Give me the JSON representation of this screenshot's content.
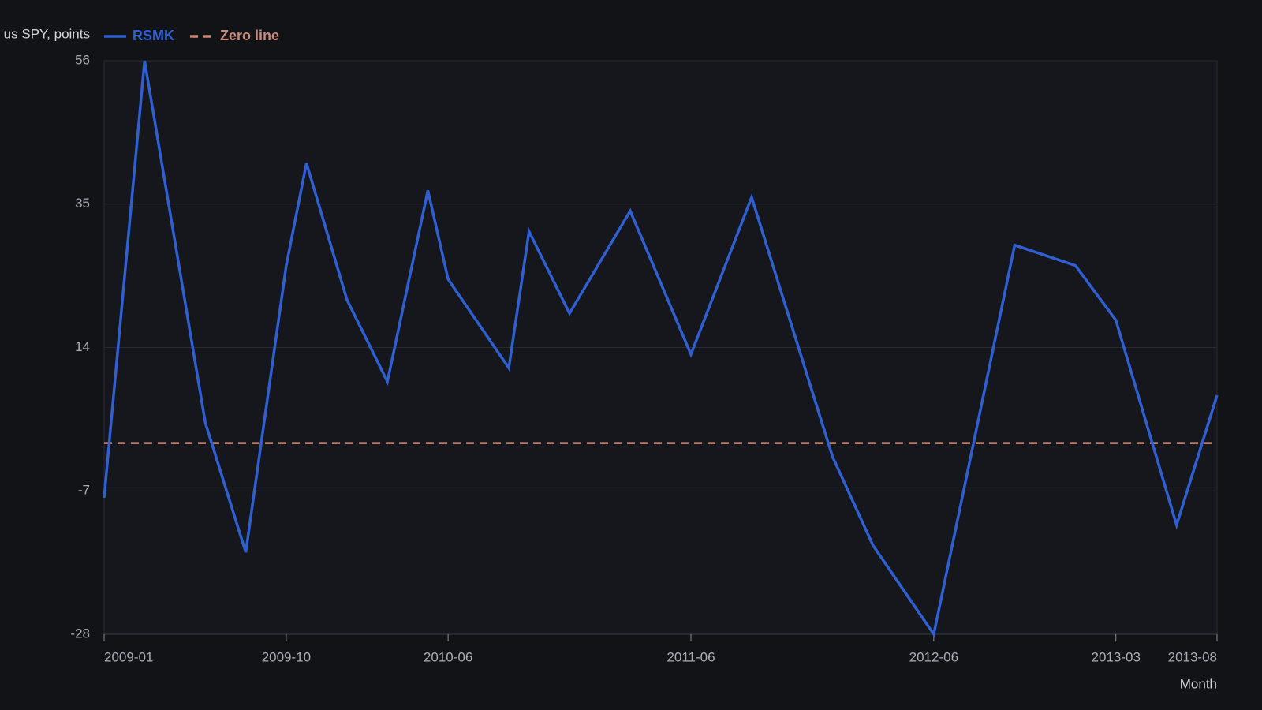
{
  "chart_data": {
    "type": "line",
    "y_label": "us SPY, points",
    "x_label": "Month",
    "x": [
      "2009-01",
      "2009-03",
      "2009-06",
      "2009-08",
      "2009-10",
      "2009-11",
      "2010-01",
      "2010-03",
      "2010-05",
      "2010-06",
      "2010-09",
      "2010-10",
      "2010-12",
      "2011-03",
      "2011-06",
      "2011-09",
      "2012-01",
      "2012-03",
      "2012-06",
      "2012-10",
      "2013-01",
      "2013-03",
      "2013-06",
      "2013-08"
    ],
    "series": [
      {
        "name": "RSMK",
        "color": "#2f5fd0",
        "values": [
          -8,
          56,
          3,
          -16,
          26,
          41,
          21,
          9,
          37,
          24,
          11,
          31,
          19,
          34,
          13,
          36,
          -2,
          -15,
          -28,
          29,
          26,
          18,
          -12,
          7
        ]
      }
    ],
    "reference_lines": [
      {
        "name": "Zero line",
        "value": 0,
        "color": "#c98a7a"
      }
    ],
    "xlim": [
      "2009-01",
      "2013-08"
    ],
    "xticks": [
      "2009-01",
      "2009-10",
      "2010-06",
      "2011-06",
      "2012-06",
      "2013-03",
      "2013-08"
    ],
    "ylim": [
      -28,
      56
    ],
    "yticks": [
      -28,
      -7,
      14,
      35,
      56
    ],
    "grid": true
  }
}
